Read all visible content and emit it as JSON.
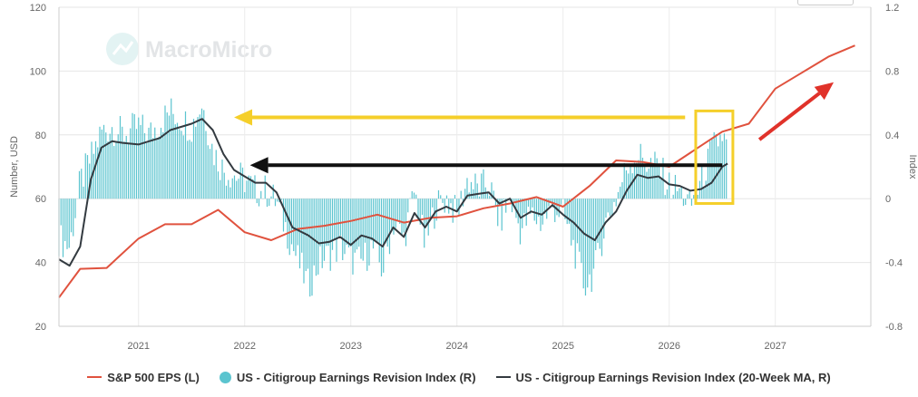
{
  "watermark": {
    "text": "MacroMicro"
  },
  "colors": {
    "eps": "#e0523e",
    "revision": "#5bc4cf",
    "ma": "#333a40",
    "yellow": "#f5cf2a",
    "black_arrow": "#111111",
    "red_arrow": "#e0322a"
  },
  "legend": {
    "eps": "S&P 500 EPS (L)",
    "revision": "US - Citigroup Earnings Revision Index (R)",
    "ma": "US - Citigroup Earnings Revision Index (20-Week MA, R)"
  },
  "chart_data": {
    "type": "line",
    "x_axis": {
      "range": [
        2020.25,
        2027.9
      ],
      "ticks": [
        "2021",
        "2022",
        "2023",
        "2024",
        "2025",
        "2026",
        "2027"
      ]
    },
    "y_left": {
      "title": "Number, USD",
      "range": [
        20,
        120
      ],
      "ticks": [
        "20",
        "40",
        "60",
        "80",
        "100",
        "120"
      ]
    },
    "y_right": {
      "title": "Index",
      "range": [
        -0.8,
        1.2
      ],
      "ticks": [
        "-0.8",
        "-0.4",
        "0",
        "0.4",
        "0.8",
        "1.2"
      ]
    },
    "grid": true,
    "series": [
      {
        "name": "S&P 500 EPS (L)",
        "type": "line",
        "axis": "left",
        "x": [
          2020.25,
          2020.45,
          2020.7,
          2021.0,
          2021.25,
          2021.5,
          2021.75,
          2022.0,
          2022.25,
          2022.5,
          2022.75,
          2023.0,
          2023.25,
          2023.5,
          2023.75,
          2024.0,
          2024.25,
          2024.5,
          2024.75,
          2025.0,
          2025.25,
          2025.5,
          2025.75,
          2026.0,
          2026.25,
          2026.5,
          2026.75,
          2027.0,
          2027.25,
          2027.5,
          2027.75
        ],
        "y": [
          29,
          38,
          38.3,
          47.5,
          52,
          52,
          56.5,
          49.5,
          47,
          50.5,
          51.5,
          53,
          55,
          52.5,
          54,
          54.5,
          57,
          58.5,
          60.5,
          57.5,
          64,
          72,
          71.5,
          70,
          75.5,
          81,
          83.5,
          94.5,
          99.5,
          104.5,
          108
        ]
      },
      {
        "name": "US - Citigroup Earnings Revision Index (20-Week MA, R)",
        "type": "line",
        "axis": "right",
        "x": [
          2020.25,
          2020.35,
          2020.45,
          2020.55,
          2020.65,
          2020.75,
          2020.85,
          2021.0,
          2021.1,
          2021.2,
          2021.3,
          2021.4,
          2021.5,
          2021.6,
          2021.7,
          2021.8,
          2021.9,
          2022.0,
          2022.1,
          2022.2,
          2022.3,
          2022.45,
          2022.6,
          2022.7,
          2022.8,
          2022.9,
          2023.0,
          2023.1,
          2023.2,
          2023.3,
          2023.4,
          2023.5,
          2023.6,
          2023.7,
          2023.8,
          2023.9,
          2024.0,
          2024.1,
          2024.2,
          2024.3,
          2024.4,
          2024.5,
          2024.6,
          2024.7,
          2024.8,
          2024.9,
          2025.0,
          2025.1,
          2025.2,
          2025.3,
          2025.4,
          2025.5,
          2025.6,
          2025.7,
          2025.8,
          2025.9,
          2026.0,
          2026.1,
          2026.2,
          2026.3,
          2026.4,
          2026.5,
          2026.55
        ],
        "y": [
          -0.38,
          -0.42,
          -0.3,
          0.12,
          0.32,
          0.36,
          0.35,
          0.34,
          0.36,
          0.38,
          0.43,
          0.45,
          0.47,
          0.5,
          0.43,
          0.28,
          0.18,
          0.14,
          0.1,
          0.1,
          0.04,
          -0.18,
          -0.23,
          -0.28,
          -0.27,
          -0.24,
          -0.29,
          -0.23,
          -0.25,
          -0.3,
          -0.18,
          -0.24,
          -0.09,
          -0.18,
          -0.08,
          -0.05,
          -0.08,
          0.02,
          0.03,
          0.04,
          -0.03,
          0.0,
          -0.12,
          -0.08,
          -0.1,
          -0.04,
          -0.1,
          -0.15,
          -0.22,
          -0.26,
          -0.15,
          -0.08,
          0.05,
          0.15,
          0.13,
          0.14,
          0.09,
          0.08,
          0.05,
          0.06,
          0.1,
          0.2,
          0.22
        ]
      },
      {
        "name": "US - Citigroup Earnings Revision Index (R)",
        "type": "bar",
        "axis": "right",
        "period": "weekly",
        "x_start": 2020.25,
        "x_end": 2026.55,
        "anchors_x": [
          2020.25,
          2020.35,
          2020.45,
          2020.55,
          2020.65,
          2020.75,
          2020.85,
          2021.0,
          2021.1,
          2021.2,
          2021.3,
          2021.4,
          2021.5,
          2021.6,
          2021.7,
          2021.8,
          2021.9,
          2022.0,
          2022.1,
          2022.2,
          2022.3,
          2022.45,
          2022.6,
          2022.7,
          2022.8,
          2022.9,
          2023.0,
          2023.1,
          2023.2,
          2023.3,
          2023.4,
          2023.5,
          2023.6,
          2023.7,
          2023.8,
          2023.9,
          2024.0,
          2024.1,
          2024.2,
          2024.3,
          2024.4,
          2024.5,
          2024.6,
          2024.7,
          2024.8,
          2024.9,
          2025.0,
          2025.1,
          2025.2,
          2025.3,
          2025.4,
          2025.5,
          2025.6,
          2025.7,
          2025.8,
          2025.9,
          2026.0,
          2026.1,
          2026.2,
          2026.3,
          2026.4,
          2026.5,
          2026.55
        ],
        "anchors_y": [
          -0.25,
          -0.3,
          0.1,
          0.25,
          0.42,
          0.45,
          0.4,
          0.45,
          0.4,
          0.48,
          0.55,
          0.5,
          0.45,
          0.6,
          0.3,
          0.18,
          0.15,
          0.12,
          0.05,
          0.05,
          -0.02,
          -0.3,
          -0.55,
          -0.4,
          -0.35,
          -0.3,
          -0.38,
          -0.4,
          -0.3,
          -0.45,
          -0.15,
          -0.25,
          0.05,
          -0.3,
          -0.05,
          0.0,
          -0.1,
          0.12,
          0.06,
          0.1,
          -0.15,
          0.0,
          -0.2,
          -0.1,
          -0.15,
          -0.05,
          -0.1,
          -0.3,
          -0.55,
          -0.45,
          -0.15,
          0.0,
          0.2,
          0.28,
          0.22,
          0.2,
          0.08,
          0.05,
          -0.05,
          0.1,
          0.3,
          0.4,
          0.3
        ]
      }
    ],
    "annotations": [
      {
        "type": "arrow",
        "color": "yellow",
        "from": [
          2026.15,
          0.51
        ],
        "to": [
          2021.9,
          0.51
        ]
      },
      {
        "type": "arrow",
        "color": "black",
        "from": [
          2026.5,
          0.21
        ],
        "to": [
          2022.05,
          0.21
        ]
      },
      {
        "type": "arrow",
        "color": "red",
        "from": [
          2026.85,
          0.37
        ],
        "to": [
          2027.55,
          0.73
        ]
      },
      {
        "type": "box",
        "color": "yellow",
        "x": [
          2026.25,
          2026.6
        ],
        "y": [
          -0.03,
          0.55
        ]
      }
    ]
  }
}
